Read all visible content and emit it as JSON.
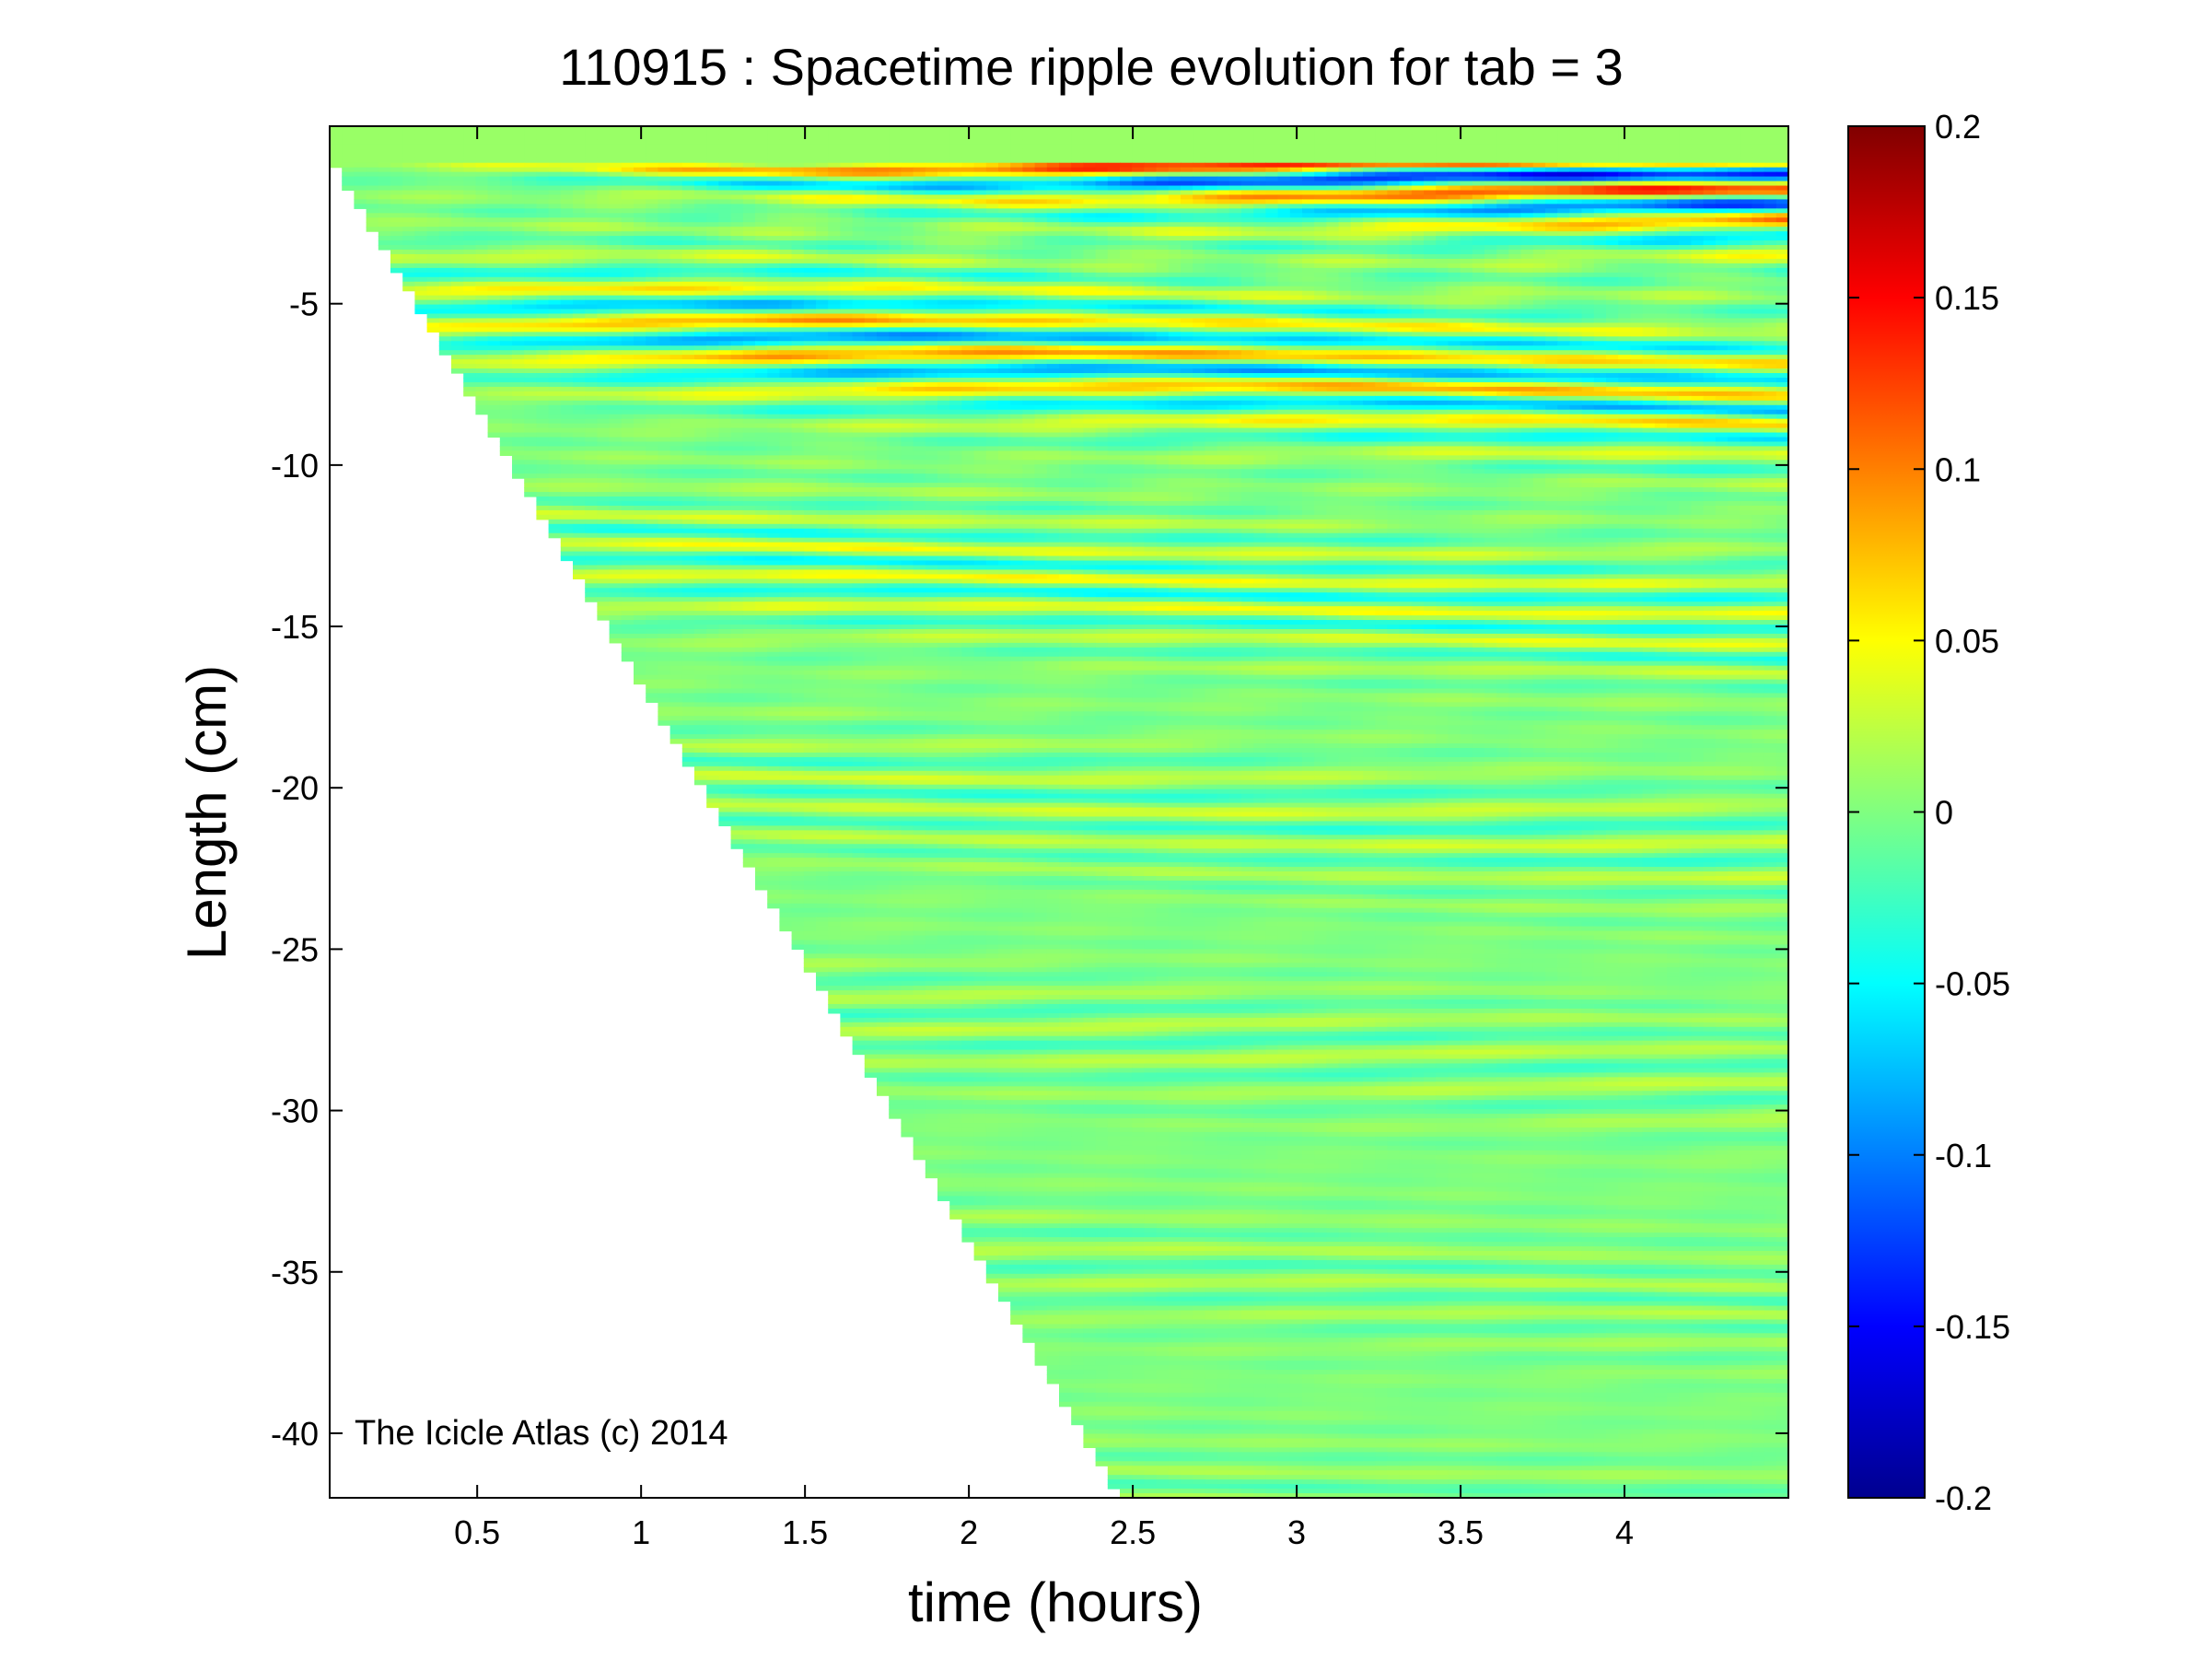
{
  "chart_data": {
    "type": "heatmap",
    "title": "110915 : Spacetime ripple evolution for tab = 3",
    "xlabel": "time (hours)",
    "ylabel": "Length (cm)",
    "xlim": [
      0.05,
      4.5
    ],
    "ylim": [
      -42,
      0.5
    ],
    "xticks": [
      0.5,
      1,
      1.5,
      2,
      2.5,
      3,
      3.5,
      4
    ],
    "xtick_labels": [
      "0.5",
      "1",
      "1.5",
      "2",
      "2.5",
      "3",
      "3.5",
      "4"
    ],
    "yticks": [
      -5,
      -10,
      -15,
      -20,
      -25,
      -30,
      -35,
      -40
    ],
    "ytick_labels": [
      "-5",
      "-10",
      "-15",
      "-20",
      "-25",
      "-30",
      "-35",
      "-40"
    ],
    "colorbar": {
      "range": [
        -0.2,
        0.2
      ],
      "ticks": [
        0.2,
        0.15,
        0.1,
        0.05,
        0,
        -0.05,
        -0.1,
        -0.15,
        -0.2
      ],
      "tick_labels": [
        "0.2",
        "0.15",
        "0.1",
        "0.05",
        "0",
        "-0.05",
        "-0.1",
        "-0.15",
        "-0.2"
      ],
      "colormap": "jet"
    },
    "growth_front": {
      "description_units": "length vs time",
      "points": [
        [
          0.05,
          -0.5
        ],
        [
          2.45,
          -41.8
        ]
      ]
    },
    "grid": false,
    "annotation": "The Icicle Atlas (c) 2014"
  }
}
